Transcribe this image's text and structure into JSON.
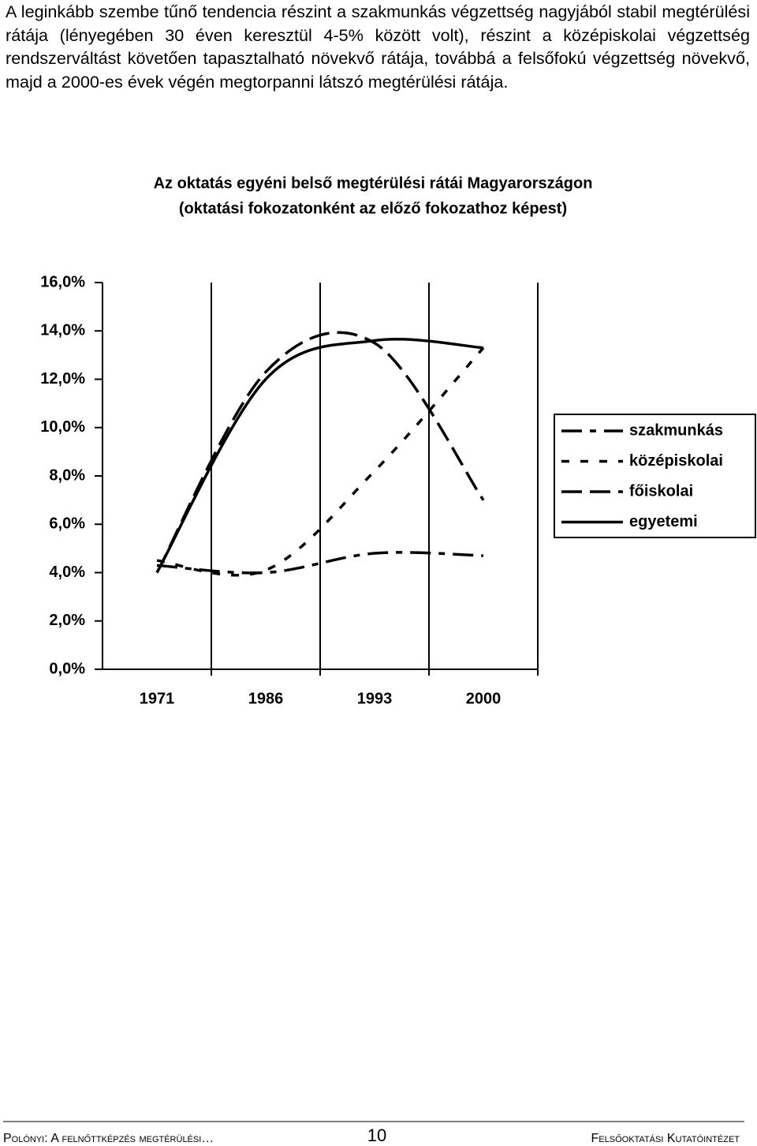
{
  "paragraph": "A leginkább szembe tűnő tendencia részint a szakmunkás végzettség nagyjából stabil megtérülési rátája (lényegében 30 éven keresztül 4-5% között volt), részint a középiskolai végzettség rendszerváltást követően tapasztalható növekvő rátája, továbbá a felsőfokú végzettség növekvő, majd a 2000-es évek végén megtorpanni látszó megtérülési rátája.",
  "chart_data": {
    "type": "line",
    "title": "Az oktatás egyéni belső megtérülési rátái Magyarországon",
    "subtitle": "(oktatási fokozatonként az előző fokozathoz képest)",
    "categories": [
      "1971",
      "1986",
      "1993",
      "2000"
    ],
    "series": [
      {
        "name": "szakmunkás",
        "color": "#000000",
        "values": [
          4.3,
          4.0,
          4.8,
          4.7
        ]
      },
      {
        "name": "középiskolai",
        "color": "#000000",
        "values": [
          4.5,
          4.1,
          8.2,
          13.3
        ]
      },
      {
        "name": "főiskolai",
        "color": "#000000",
        "values": [
          4.0,
          12.3,
          13.5,
          7.0
        ]
      },
      {
        "name": "egyetemi",
        "color": "#000000",
        "values": [
          4.0,
          12.0,
          13.6,
          13.3
        ]
      }
    ],
    "ylim": [
      0,
      16
    ],
    "yticks": [
      {
        "value": 0,
        "label": "0,0%"
      },
      {
        "value": 2,
        "label": "2,0%"
      },
      {
        "value": 4,
        "label": "4,0%"
      },
      {
        "value": 6,
        "label": "6,0%"
      },
      {
        "value": 8,
        "label": "8,0%"
      },
      {
        "value": 10,
        "label": "10,0%"
      },
      {
        "value": 12,
        "label": "12,0%"
      },
      {
        "value": 14,
        "label": "14,0%"
      },
      {
        "value": 16,
        "label": "16,0%"
      }
    ],
    "legend": "right"
  },
  "footer": {
    "left": "Polónyi: A felnőttképzés megtérülési…",
    "page": "10",
    "right": "Felsőoktatási Kutatóintézet"
  }
}
